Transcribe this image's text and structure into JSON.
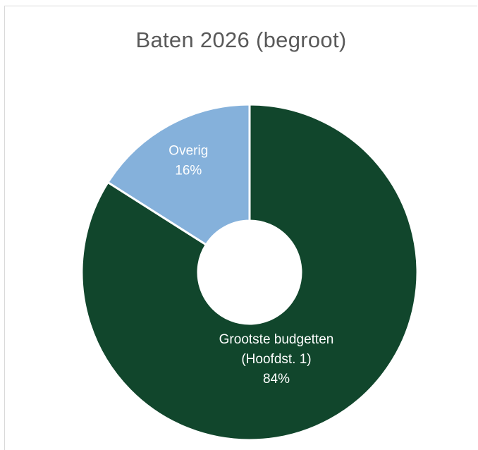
{
  "chart_data": {
    "type": "pie",
    "variant": "doughnut",
    "title": "Baten 2026 (begroot)",
    "legend": "none",
    "slices": [
      {
        "label_lines": [
          "Grootste budgetten",
          "(Hoofdst. 1)"
        ],
        "value": 84,
        "value_label": "84%",
        "color": "#11462c",
        "label_color": "#ffffff"
      },
      {
        "label_lines": [
          "Overig"
        ],
        "value": 16,
        "value_label": "16%",
        "color": "#85b1db",
        "label_color": "#ffffff"
      }
    ]
  }
}
